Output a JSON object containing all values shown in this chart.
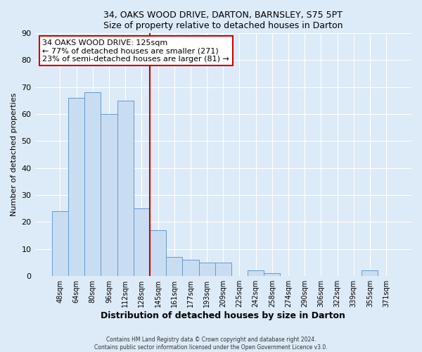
{
  "title1": "34, OAKS WOOD DRIVE, DARTON, BARNSLEY, S75 5PT",
  "title2": "Size of property relative to detached houses in Darton",
  "xlabel": "Distribution of detached houses by size in Darton",
  "ylabel": "Number of detached properties",
  "bar_labels": [
    "48sqm",
    "64sqm",
    "80sqm",
    "96sqm",
    "112sqm",
    "128sqm",
    "145sqm",
    "161sqm",
    "177sqm",
    "193sqm",
    "209sqm",
    "225sqm",
    "242sqm",
    "258sqm",
    "274sqm",
    "290sqm",
    "306sqm",
    "322sqm",
    "339sqm",
    "355sqm",
    "371sqm"
  ],
  "bar_values": [
    24,
    66,
    68,
    60,
    65,
    25,
    17,
    7,
    6,
    5,
    5,
    0,
    2,
    1,
    0,
    0,
    0,
    0,
    0,
    2,
    0
  ],
  "bar_color": "#c9ddf2",
  "bar_edge_color": "#6699cc",
  "marker_index": 5,
  "marker_color": "#cc0000",
  "annotation_title": "34 OAKS WOOD DRIVE: 125sqm",
  "annotation_line1": "← 77% of detached houses are smaller (271)",
  "annotation_line2": "23% of semi-detached houses are larger (81) →",
  "annotation_box_color": "#ffffff",
  "annotation_box_edge": "#cc0000",
  "ylim": [
    0,
    90
  ],
  "yticks": [
    0,
    10,
    20,
    30,
    40,
    50,
    60,
    70,
    80,
    90
  ],
  "footer1": "Contains HM Land Registry data © Crown copyright and database right 2024.",
  "footer2": "Contains public sector information licensed under the Open Government Licence v3.0.",
  "background_color": "#ddeaf7",
  "grid_color": "#ffffff"
}
